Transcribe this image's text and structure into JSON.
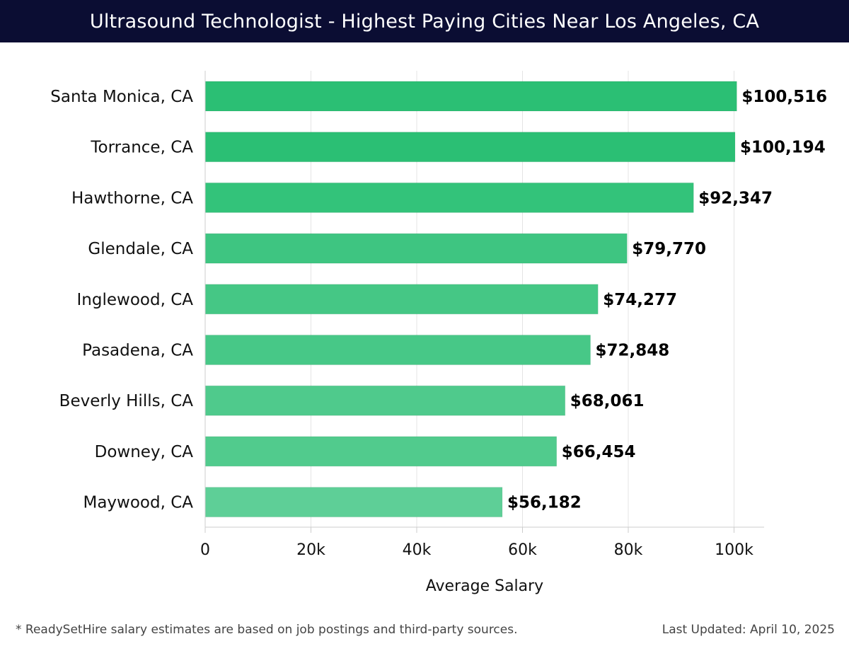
{
  "chart_data": {
    "type": "bar",
    "orientation": "horizontal",
    "title": "Ultrasound Technologist - Highest Paying Cities Near Los Angeles, CA",
    "xlabel": "Average Salary",
    "ylabel": "",
    "xlim": [
      0,
      105000
    ],
    "xticks": [
      0,
      20000,
      40000,
      60000,
      80000,
      100000
    ],
    "xtick_labels": [
      "0",
      "20k",
      "40k",
      "60k",
      "80k",
      "100k"
    ],
    "grid": true,
    "categories": [
      "Santa Monica, CA",
      "Torrance, CA",
      "Hawthorne, CA",
      "Glendale, CA",
      "Inglewood, CA",
      "Pasadena, CA",
      "Beverly Hills, CA",
      "Downey, CA",
      "Maywood, CA"
    ],
    "values": [
      100516,
      100194,
      92347,
      79770,
      74277,
      72848,
      68061,
      66454,
      56182
    ],
    "value_labels": [
      "$100,516",
      "$100,194",
      "$92,347",
      "$79,770",
      "$74,277",
      "$72,848",
      "$68,061",
      "$66,454",
      "$56,182"
    ],
    "bar_colors": [
      "#2bbf74",
      "#2bbf74",
      "#33c37a",
      "#3ec581",
      "#45c785",
      "#47c887",
      "#4fca8c",
      "#51cb8d",
      "#5ecf97"
    ]
  },
  "footer": {
    "note": "* ReadySetHire salary estimates are based on job postings and third-party sources.",
    "updated": "Last Updated: April 10, 2025"
  }
}
